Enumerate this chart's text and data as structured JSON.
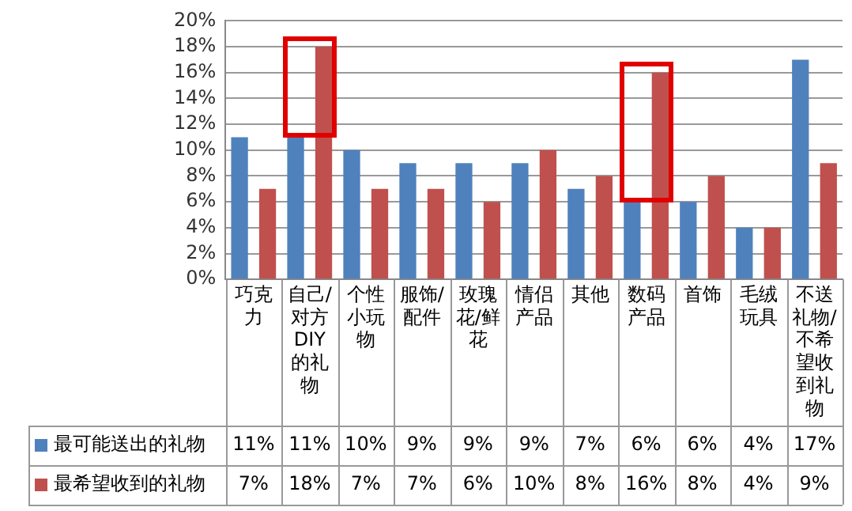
{
  "chart_data": {
    "type": "bar",
    "categories": [
      "巧克力",
      "自己/对方DIY的礼物",
      "个性小玩物",
      "服饰/配件",
      "玫瑰花/鲜花",
      "情侣产品",
      "其他",
      "数码产品",
      "首饰",
      "毛绒玩具",
      "不送礼物/不希望收到礼物"
    ],
    "series": [
      {
        "name": "最可能送出的礼物",
        "color": "#4f81bd",
        "values": [
          11,
          11,
          10,
          9,
          9,
          9,
          7,
          6,
          6,
          4,
          17
        ],
        "value_labels": [
          "11%",
          "11%",
          "10%",
          "9%",
          "9%",
          "9%",
          "7%",
          "6%",
          "6%",
          "4%",
          "17%"
        ]
      },
      {
        "name": "最希望收到的礼物",
        "color": "#c0504d",
        "values": [
          7,
          18,
          7,
          7,
          6,
          10,
          8,
          16,
          8,
          4,
          9
        ],
        "value_labels": [
          "7%",
          "18%",
          "7%",
          "7%",
          "6%",
          "10%",
          "8%",
          "16%",
          "8%",
          "4%",
          "9%"
        ]
      }
    ],
    "ylim": [
      0,
      20
    ],
    "yticks": [
      {
        "value": 0,
        "label": "0%"
      },
      {
        "value": 2,
        "label": "2%"
      },
      {
        "value": 4,
        "label": "4%"
      },
      {
        "value": 6,
        "label": "6%"
      },
      {
        "value": 8,
        "label": "8%"
      },
      {
        "value": 10,
        "label": "10%"
      },
      {
        "value": 12,
        "label": "12%"
      },
      {
        "value": 14,
        "label": "14%"
      },
      {
        "value": 16,
        "label": "16%"
      },
      {
        "value": 18,
        "label": "18%"
      },
      {
        "value": 20,
        "label": "20%"
      }
    ],
    "grid": "y",
    "legend": "bottom"
  }
}
